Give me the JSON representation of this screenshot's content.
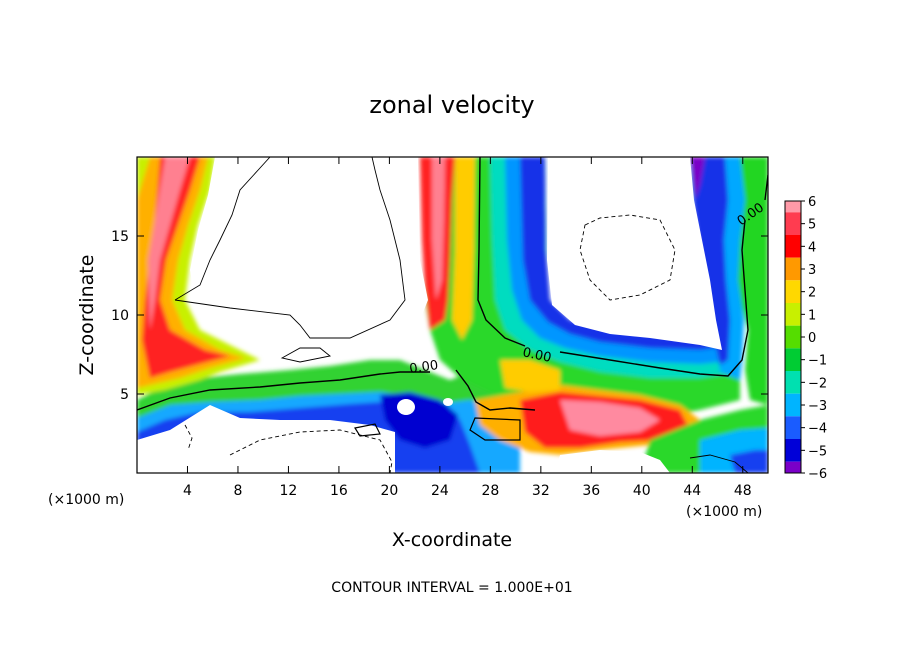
{
  "chart_data": {
    "type": "heatmap",
    "title": "zonal velocity",
    "xlabel": "X-coordinate",
    "ylabel": "Z-coordinate",
    "x_unit_note": "(×1000 m)",
    "xlim": [
      0,
      50
    ],
    "ylim": [
      0,
      20
    ],
    "x_ticks": [
      4,
      8,
      12,
      16,
      20,
      24,
      28,
      32,
      36,
      40,
      44,
      48
    ],
    "x_tick_labels": [
      "4",
      "8",
      "12",
      "16",
      "20",
      "24",
      "28",
      "32",
      "36",
      "40",
      "44",
      "48"
    ],
    "y_ticks": [
      5,
      10,
      15
    ],
    "y_tick_labels": [
      "5",
      "10",
      "15"
    ],
    "colorbar": {
      "range": [
        -6,
        6
      ],
      "ticks": [
        6,
        5,
        4,
        3,
        2,
        1,
        0,
        -1,
        -2,
        -3,
        -4,
        -5,
        -6
      ],
      "tick_labels": [
        "6",
        "5",
        "4",
        "3",
        "2",
        "1",
        "0",
        "−1",
        "−2",
        "−3",
        "−4",
        "−5",
        "−6"
      ],
      "colors": [
        "#ff9aa8",
        "#ff3c50",
        "#ff0000",
        "#ff9900",
        "#ffd800",
        "#c8f000",
        "#55dd00",
        "#00cc33",
        "#00e0b0",
        "#00b4ff",
        "#1a5cff",
        "#0000d8",
        "#7a00c8"
      ]
    },
    "contour_labels": [
      "0.00",
      "0.00",
      "0.00"
    ],
    "note": "CONTOUR INTERVAL = 1.000E+01"
  }
}
